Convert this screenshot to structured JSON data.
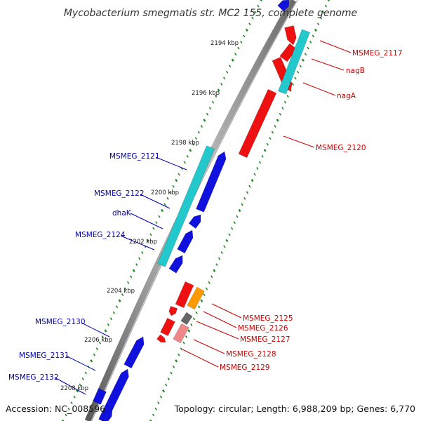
{
  "title": "Mycobacterium smegmatis str. MC2 155, complete genome",
  "footer": {
    "accession": "Accession: NC_008596",
    "summary": "Topology: circular; Length: 6,988,209 bp; Genes: 6,770"
  },
  "kbp_ticks": [
    "2194 kbp",
    "2196 kbp",
    "2198 kbp",
    "2200 kbp",
    "2202 kbp",
    "2204 kbp",
    "2206 kbp",
    "2208 kbp"
  ],
  "genes_right": [
    "MSMEG_2117",
    "nagB",
    "nagA",
    "MSMEG_2120",
    "MSMEG_2125",
    "MSMEG_2126",
    "MSMEG_2127",
    "MSMEG_2128",
    "MSMEG_2129"
  ],
  "genes_left": [
    "MSMEG_2121",
    "MSMEG_2122",
    "dhaK",
    "MSMEG_2124",
    "MSMEG_2130",
    "MSMEG_2131",
    "MSMEG_2132"
  ],
  "colors": {
    "plus_cds": "#ee1111",
    "minus_cds": "#1111dd",
    "cyan_feature": "#22c8cc",
    "orange_feature": "#ff9900",
    "gray_feature": "#666666",
    "pink_feature": "#ee8888",
    "right_label": "#cc0000",
    "left_label": "#0000aa",
    "tick_dots": "#228822",
    "backbone": "#888888"
  }
}
